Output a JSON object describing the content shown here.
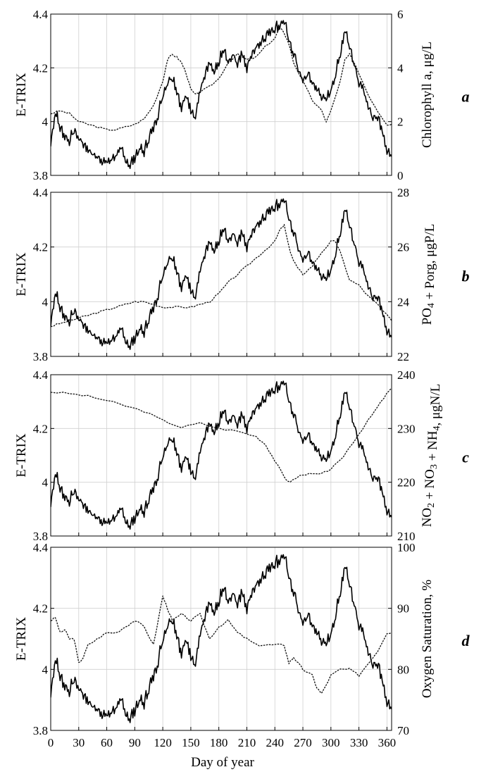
{
  "x_axis": {
    "label": "Day of  year",
    "ticks": [
      "0",
      "30",
      "60",
      "90",
      "120",
      "150",
      "180",
      "210",
      "240",
      "270",
      "300",
      "330",
      "360"
    ]
  },
  "chart_data": [
    {
      "type": "line",
      "panel": "a",
      "xlabel": "Day of  year",
      "ylabel": "E-TRIX",
      "y2label": "Chlorophyll a, μg/L",
      "xlim": [
        0,
        365
      ],
      "ylim": [
        3.8,
        4.4
      ],
      "y2lim": [
        0,
        6
      ],
      "yticks": [
        "3.8",
        "4",
        "4.2",
        "4.4"
      ],
      "y2ticks": [
        "0",
        "2",
        "4",
        "6"
      ],
      "grid": true,
      "series": [
        {
          "axis": "left",
          "style": "solid",
          "x": [
            0,
            5,
            10,
            15,
            20,
            25,
            30,
            35,
            40,
            45,
            50,
            55,
            60,
            65,
            70,
            75,
            80,
            85,
            90,
            95,
            100,
            105,
            110,
            115,
            120,
            125,
            130,
            135,
            140,
            145,
            150,
            155,
            160,
            165,
            170,
            175,
            180,
            185,
            190,
            195,
            200,
            205,
            210,
            215,
            220,
            225,
            230,
            235,
            240,
            245,
            250,
            255,
            260,
            265,
            270,
            275,
            280,
            285,
            290,
            295,
            300,
            305,
            310,
            315,
            320,
            325,
            330,
            335,
            340,
            345,
            350,
            355,
            360,
            365
          ],
          "y": [
            3.92,
            4.04,
            3.98,
            3.95,
            3.93,
            3.97,
            3.94,
            3.92,
            3.9,
            3.88,
            3.87,
            3.86,
            3.85,
            3.86,
            3.88,
            3.9,
            3.86,
            3.84,
            3.87,
            3.9,
            3.89,
            3.94,
            3.98,
            4.03,
            4.1,
            4.15,
            4.17,
            4.12,
            4.05,
            4.1,
            4.05,
            4.02,
            4.12,
            4.17,
            4.22,
            4.18,
            4.22,
            4.27,
            4.22,
            4.25,
            4.22,
            4.26,
            4.2,
            4.25,
            4.28,
            4.3,
            4.32,
            4.34,
            4.35,
            4.36,
            4.38,
            4.3,
            4.26,
            4.2,
            4.15,
            4.18,
            4.15,
            4.12,
            4.1,
            4.08,
            4.12,
            4.18,
            4.25,
            4.35,
            4.28,
            4.22,
            4.15,
            4.12,
            4.05,
            4.02,
            4.02,
            3.97,
            3.9,
            3.87
          ]
        },
        {
          "axis": "right",
          "style": "dotted",
          "x": [
            0,
            10,
            20,
            30,
            40,
            50,
            60,
            70,
            80,
            90,
            100,
            110,
            120,
            125,
            130,
            135,
            140,
            145,
            150,
            155,
            160,
            170,
            180,
            190,
            200,
            210,
            220,
            230,
            240,
            245,
            250,
            255,
            260,
            270,
            280,
            290,
            295,
            300,
            310,
            315,
            320,
            330,
            340,
            350,
            360,
            365
          ],
          "y": [
            2.3,
            2.4,
            2.3,
            2.0,
            1.9,
            1.8,
            1.7,
            1.7,
            1.8,
            1.9,
            2.1,
            2.6,
            3.5,
            4.3,
            4.5,
            4.4,
            4.2,
            3.8,
            3.2,
            3.0,
            3.1,
            3.3,
            3.6,
            4.2,
            4.5,
            4.3,
            4.4,
            4.8,
            5.1,
            5.5,
            5.3,
            4.9,
            4.2,
            3.5,
            2.8,
            2.4,
            2.0,
            2.4,
            3.5,
            4.3,
            4.5,
            3.8,
            3.0,
            2.4,
            1.9,
            1.9
          ]
        }
      ]
    },
    {
      "type": "line",
      "panel": "b",
      "xlabel": "Day of  year",
      "ylabel": "E-TRIX",
      "y2label": "PO4 + Porg, μgP/L",
      "xlim": [
        0,
        365
      ],
      "ylim": [
        3.8,
        4.4
      ],
      "y2lim": [
        22,
        28
      ],
      "yticks": [
        "3.8",
        "4",
        "4.2",
        "4.4"
      ],
      "y2ticks": [
        "22",
        "24",
        "26",
        "28"
      ],
      "grid": true,
      "series": [
        {
          "axis": "left",
          "style": "solid",
          "x": [
            0,
            5,
            10,
            15,
            20,
            25,
            30,
            35,
            40,
            45,
            50,
            55,
            60,
            65,
            70,
            75,
            80,
            85,
            90,
            95,
            100,
            105,
            110,
            115,
            120,
            125,
            130,
            135,
            140,
            145,
            150,
            155,
            160,
            165,
            170,
            175,
            180,
            185,
            190,
            195,
            200,
            205,
            210,
            215,
            220,
            225,
            230,
            235,
            240,
            245,
            250,
            255,
            260,
            265,
            270,
            275,
            280,
            285,
            290,
            295,
            300,
            305,
            310,
            315,
            320,
            325,
            330,
            335,
            340,
            345,
            350,
            355,
            360,
            365
          ],
          "y": [
            3.92,
            4.04,
            3.98,
            3.95,
            3.93,
            3.97,
            3.94,
            3.92,
            3.9,
            3.88,
            3.87,
            3.86,
            3.85,
            3.86,
            3.88,
            3.9,
            3.86,
            3.84,
            3.87,
            3.9,
            3.89,
            3.94,
            3.98,
            4.03,
            4.1,
            4.15,
            4.17,
            4.12,
            4.05,
            4.1,
            4.05,
            4.02,
            4.12,
            4.17,
            4.22,
            4.18,
            4.22,
            4.27,
            4.22,
            4.25,
            4.22,
            4.26,
            4.2,
            4.25,
            4.28,
            4.3,
            4.32,
            4.34,
            4.35,
            4.36,
            4.38,
            4.3,
            4.26,
            4.2,
            4.15,
            4.18,
            4.15,
            4.12,
            4.1,
            4.08,
            4.12,
            4.18,
            4.25,
            4.35,
            4.28,
            4.22,
            4.15,
            4.12,
            4.05,
            4.02,
            4.02,
            3.97,
            3.9,
            3.87
          ]
        },
        {
          "axis": "right",
          "style": "dotted",
          "x": [
            0,
            10,
            20,
            30,
            40,
            50,
            60,
            70,
            80,
            90,
            100,
            110,
            120,
            130,
            140,
            150,
            160,
            170,
            180,
            190,
            200,
            210,
            220,
            230,
            240,
            245,
            250,
            255,
            260,
            265,
            270,
            280,
            290,
            300,
            305,
            310,
            320,
            330,
            340,
            350,
            360,
            365
          ],
          "y": [
            23.1,
            23.2,
            23.3,
            23.4,
            23.5,
            23.6,
            23.7,
            23.8,
            23.9,
            24.0,
            24.0,
            23.9,
            23.8,
            23.8,
            23.8,
            23.8,
            23.9,
            24.0,
            24.3,
            24.7,
            25.0,
            25.3,
            25.6,
            25.9,
            26.2,
            26.6,
            26.8,
            26.0,
            25.5,
            25.2,
            25.0,
            25.3,
            25.8,
            26.2,
            26.2,
            25.8,
            24.8,
            24.6,
            24.2,
            23.9,
            23.5,
            23.3
          ]
        }
      ]
    },
    {
      "type": "line",
      "panel": "c",
      "xlabel": "Day of  year",
      "ylabel": "E-TRIX",
      "y2label": "NO2 + NO3 + NH4, μgN/L",
      "xlim": [
        0,
        365
      ],
      "ylim": [
        3.8,
        4.4
      ],
      "y2lim": [
        210,
        240
      ],
      "yticks": [
        "3.8",
        "4",
        "4.2",
        "4.4"
      ],
      "y2ticks": [
        "210",
        "220",
        "230",
        "240"
      ],
      "grid": true,
      "series": [
        {
          "axis": "left",
          "style": "solid",
          "x": [
            0,
            5,
            10,
            15,
            20,
            25,
            30,
            35,
            40,
            45,
            50,
            55,
            60,
            65,
            70,
            75,
            80,
            85,
            90,
            95,
            100,
            105,
            110,
            115,
            120,
            125,
            130,
            135,
            140,
            145,
            150,
            155,
            160,
            165,
            170,
            175,
            180,
            185,
            190,
            195,
            200,
            205,
            210,
            215,
            220,
            225,
            230,
            235,
            240,
            245,
            250,
            255,
            260,
            265,
            270,
            275,
            280,
            285,
            290,
            295,
            300,
            305,
            310,
            315,
            320,
            325,
            330,
            335,
            340,
            345,
            350,
            355,
            360,
            365
          ],
          "y": [
            3.92,
            4.04,
            3.98,
            3.95,
            3.93,
            3.97,
            3.94,
            3.92,
            3.9,
            3.88,
            3.87,
            3.86,
            3.85,
            3.86,
            3.88,
            3.9,
            3.86,
            3.84,
            3.87,
            3.9,
            3.89,
            3.94,
            3.98,
            4.03,
            4.1,
            4.15,
            4.17,
            4.12,
            4.05,
            4.1,
            4.05,
            4.02,
            4.12,
            4.17,
            4.22,
            4.18,
            4.22,
            4.27,
            4.22,
            4.25,
            4.22,
            4.26,
            4.2,
            4.25,
            4.28,
            4.3,
            4.32,
            4.34,
            4.35,
            4.36,
            4.38,
            4.3,
            4.26,
            4.2,
            4.15,
            4.18,
            4.15,
            4.12,
            4.1,
            4.08,
            4.12,
            4.18,
            4.25,
            4.35,
            4.28,
            4.22,
            4.15,
            4.12,
            4.05,
            4.02,
            4.02,
            3.97,
            3.9,
            3.87
          ]
        },
        {
          "axis": "right",
          "style": "dotted",
          "x": [
            0,
            20,
            40,
            60,
            80,
            100,
            120,
            140,
            160,
            180,
            200,
            220,
            230,
            240,
            250,
            255,
            260,
            270,
            280,
            290,
            300,
            310,
            320,
            330,
            340,
            350,
            360,
            365
          ],
          "y": [
            236.8,
            236.5,
            236,
            235.2,
            234.2,
            233.2,
            231.5,
            230.2,
            231,
            230,
            229.5,
            228.5,
            227,
            224,
            221,
            220,
            220.5,
            221.5,
            221.5,
            221.5,
            222.5,
            224,
            226.5,
            229,
            231.5,
            234,
            236.5,
            237.5
          ]
        }
      ]
    },
    {
      "type": "line",
      "panel": "d",
      "xlabel": "Day of  year",
      "ylabel": "E-TRIX",
      "y2label": "Oxygen Saturation, %",
      "xlim": [
        0,
        365
      ],
      "ylim": [
        3.8,
        4.4
      ],
      "y2lim": [
        70,
        100
      ],
      "yticks": [
        "3.8",
        "4",
        "4.2",
        "4.4"
      ],
      "y2ticks": [
        "70",
        "80",
        "90",
        "100"
      ],
      "grid": true,
      "series": [
        {
          "axis": "left",
          "style": "solid",
          "x": [
            0,
            5,
            10,
            15,
            20,
            25,
            30,
            35,
            40,
            45,
            50,
            55,
            60,
            65,
            70,
            75,
            80,
            85,
            90,
            95,
            100,
            105,
            110,
            115,
            120,
            125,
            130,
            135,
            140,
            145,
            150,
            155,
            160,
            165,
            170,
            175,
            180,
            185,
            190,
            195,
            200,
            205,
            210,
            215,
            220,
            225,
            230,
            235,
            240,
            245,
            250,
            255,
            260,
            265,
            270,
            275,
            280,
            285,
            290,
            295,
            300,
            305,
            310,
            315,
            320,
            325,
            330,
            335,
            340,
            345,
            350,
            355,
            360,
            365
          ],
          "y": [
            3.92,
            4.04,
            3.98,
            3.95,
            3.93,
            3.97,
            3.94,
            3.92,
            3.9,
            3.88,
            3.87,
            3.86,
            3.85,
            3.86,
            3.88,
            3.9,
            3.86,
            3.84,
            3.87,
            3.9,
            3.89,
            3.94,
            3.98,
            4.03,
            4.1,
            4.15,
            4.17,
            4.12,
            4.05,
            4.1,
            4.05,
            4.02,
            4.12,
            4.17,
            4.22,
            4.18,
            4.22,
            4.27,
            4.22,
            4.25,
            4.22,
            4.26,
            4.2,
            4.25,
            4.28,
            4.3,
            4.32,
            4.34,
            4.35,
            4.36,
            4.38,
            4.3,
            4.26,
            4.2,
            4.15,
            4.18,
            4.15,
            4.12,
            4.1,
            4.08,
            4.12,
            4.18,
            4.25,
            4.35,
            4.28,
            4.22,
            4.15,
            4.12,
            4.05,
            4.02,
            4.02,
            3.97,
            3.9,
            3.87
          ]
        },
        {
          "axis": "right",
          "style": "dotted",
          "x": [
            0,
            5,
            10,
            15,
            20,
            25,
            30,
            35,
            40,
            50,
            60,
            70,
            80,
            90,
            100,
            110,
            120,
            125,
            130,
            140,
            150,
            160,
            170,
            180,
            190,
            200,
            210,
            220,
            230,
            240,
            250,
            255,
            260,
            265,
            270,
            280,
            285,
            290,
            300,
            310,
            320,
            330,
            340,
            350,
            360,
            365
          ],
          "y": [
            88,
            88.5,
            86,
            86.5,
            85,
            85,
            81,
            82,
            84,
            85,
            86,
            86,
            87,
            88,
            87,
            84,
            92,
            90,
            88,
            89,
            88,
            89,
            85,
            87,
            88,
            86,
            85,
            84,
            84,
            84,
            84,
            81,
            82,
            81,
            80,
            79,
            77,
            76,
            79,
            80,
            80,
            79,
            81,
            83,
            86,
            86
          ]
        }
      ]
    }
  ]
}
